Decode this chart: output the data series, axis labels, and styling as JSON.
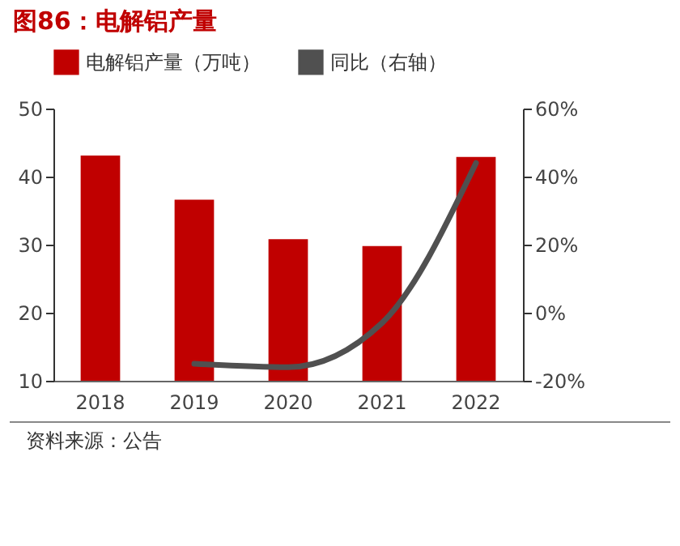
{
  "chart_data": {
    "type": "bar",
    "title": "图86：电解铝产量",
    "categories": [
      "2018",
      "2019",
      "2020",
      "2021",
      "2022"
    ],
    "series": [
      {
        "name": "电解铝产量（万吨）",
        "color": "#c00000",
        "values": [
          43.1,
          36.6,
          30.8,
          29.8,
          42.9
        ]
      },
      {
        "name": "同比（右轴）",
        "type": "line",
        "axis": "y2",
        "color": "#505050",
        "values": [
          null,
          -15,
          -16,
          -3,
          44
        ]
      }
    ],
    "ylim": [
      10,
      50
    ],
    "yticks": [
      10,
      20,
      30,
      40,
      50
    ],
    "y2lim": [
      -20,
      60
    ],
    "y2ticks": [
      {
        "value": -20,
        "label": "-20%"
      },
      {
        "value": 0,
        "label": "0%"
      },
      {
        "value": 20,
        "label": "20%"
      },
      {
        "value": 40,
        "label": "40%"
      },
      {
        "value": 60,
        "label": "60%"
      }
    ],
    "legend": "top",
    "grid": false,
    "annotations": [
      "资料来源：公告"
    ]
  }
}
